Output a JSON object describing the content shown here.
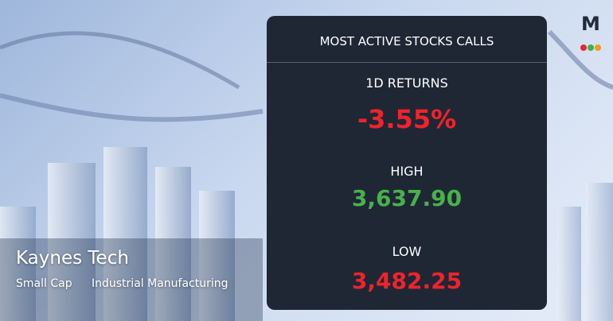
{
  "logo": {
    "letter": "M"
  },
  "company": {
    "name": "Kaynes Tech",
    "cap": "Small Cap",
    "sector": "Industrial Manufacturing"
  },
  "panel": {
    "title": "MOST ACTIVE STOCKS CALLS",
    "stats": [
      {
        "label": "1D RETURNS",
        "value": "-3.55%",
        "tone": "negative"
      },
      {
        "label": "HIGH",
        "value": "3,637.90",
        "tone": "positive"
      },
      {
        "label": "LOW",
        "value": "3,482.25",
        "tone": "negative"
      }
    ]
  }
}
